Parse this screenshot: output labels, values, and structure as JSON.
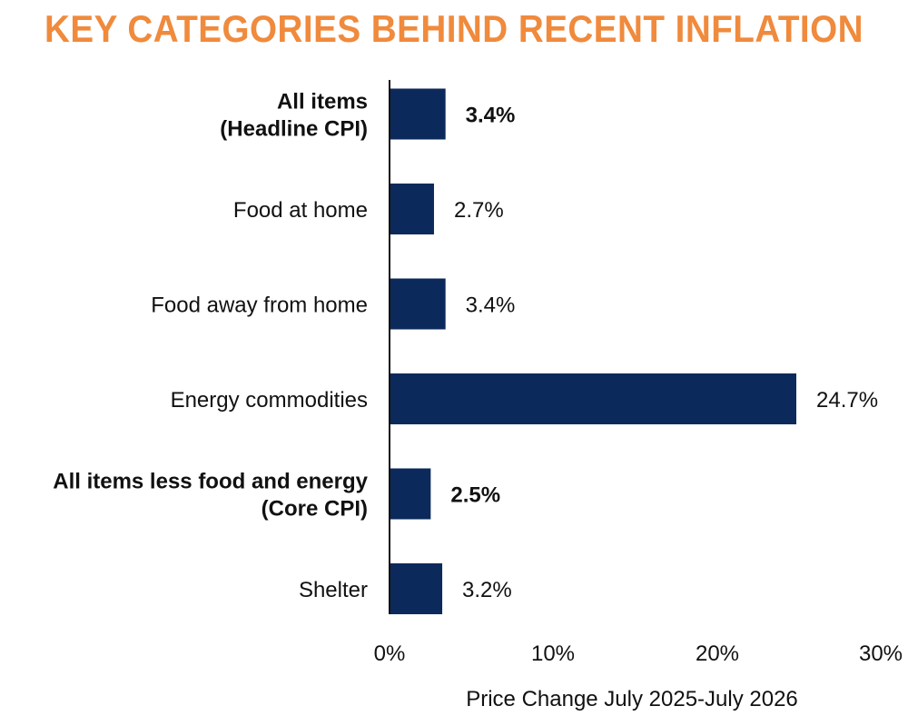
{
  "chart_data": {
    "type": "bar",
    "orientation": "horizontal",
    "title": "KEY CATEGORIES BEHIND RECENT INFLATION",
    "xlabel": "Price Change July 2025-July 2026",
    "ylabel": "",
    "xlim": [
      0,
      30
    ],
    "xticks": [
      "0%",
      "10%",
      "20%",
      "30%"
    ],
    "grid": false,
    "categories": [
      "All items\n(Headline CPI)",
      "Food at home",
      "Food away from home",
      "Energy commodities",
      "All items less food and energy\n(Core CPI)",
      "Shelter"
    ],
    "values": [
      3.4,
      2.7,
      3.4,
      24.7,
      2.5,
      3.2
    ],
    "value_labels": [
      "3.4%",
      "2.7%",
      "3.4%",
      "24.7%",
      "2.5%",
      "3.2%"
    ],
    "bold": [
      true,
      false,
      false,
      false,
      true,
      false
    ]
  },
  "colors": {
    "title": "#F08A3C",
    "bar": "#0B2A5B",
    "axis": "#111111"
  }
}
